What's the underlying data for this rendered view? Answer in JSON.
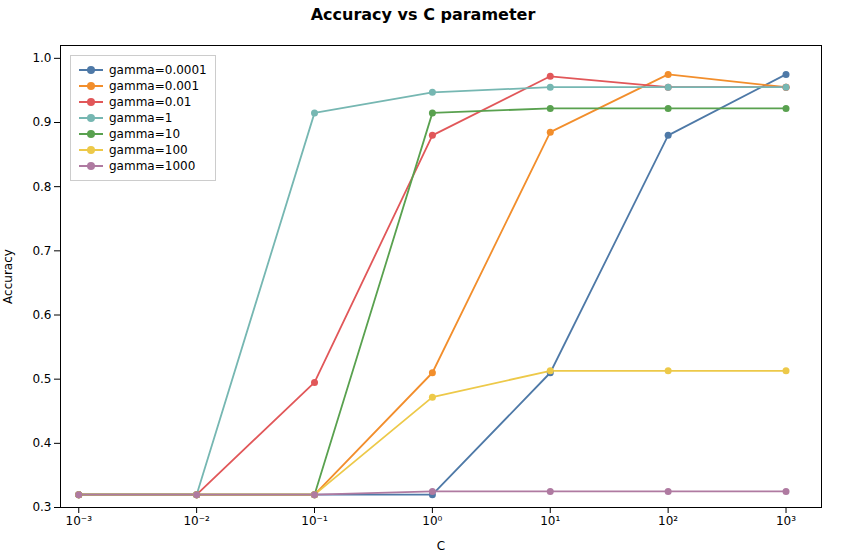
{
  "chart_data": {
    "type": "line",
    "title": "Accuracy vs C parameter",
    "xlabel": "C",
    "ylabel": "Accuracy",
    "x": [
      0.001,
      0.01,
      0.1,
      1.0,
      10.0,
      100.0,
      1000.0
    ],
    "series": [
      {
        "name": "gamma=0.0001",
        "values": [
          0.32,
          0.32,
          0.32,
          0.32,
          0.51,
          0.88,
          0.975
        ]
      },
      {
        "name": "gamma=0.001",
        "values": [
          0.32,
          0.32,
          0.32,
          0.51,
          0.885,
          0.975,
          0.955
        ]
      },
      {
        "name": "gamma=0.01",
        "values": [
          0.32,
          0.32,
          0.495,
          0.88,
          0.972,
          0.955,
          0.955
        ]
      },
      {
        "name": "gamma=1",
        "values": [
          0.32,
          0.32,
          0.915,
          0.947,
          0.955,
          0.955,
          0.955
        ]
      },
      {
        "name": "gamma=10",
        "values": [
          0.32,
          0.32,
          0.32,
          0.915,
          0.922,
          0.922,
          0.922
        ]
      },
      {
        "name": "gamma=100",
        "values": [
          0.32,
          0.32,
          0.32,
          0.472,
          0.513,
          0.513,
          0.513
        ]
      },
      {
        "name": "gamma=1000",
        "values": [
          0.32,
          0.32,
          0.32,
          0.325,
          0.325,
          0.325,
          0.325
        ]
      }
    ],
    "log": "x",
    "xlim": [
      0.0007,
      2000
    ],
    "xticks": [
      {
        "value": 0.001,
        "label": "10⁻³"
      },
      {
        "value": 0.01,
        "label": "10⁻²"
      },
      {
        "value": 0.1,
        "label": "10⁻¹"
      },
      {
        "value": 1,
        "label": "10⁰"
      },
      {
        "value": 10,
        "label": "10¹"
      },
      {
        "value": 100,
        "label": "10²"
      },
      {
        "value": 1000,
        "label": "10³"
      }
    ],
    "ylim": [
      0.3,
      1.02
    ],
    "yticks": [
      0.3,
      0.4,
      0.5,
      0.6,
      0.7,
      0.8,
      0.9,
      {
        "value": 1,
        "label": "1.0"
      }
    ],
    "marker": "circle",
    "grid": false,
    "legend": "upper left"
  }
}
